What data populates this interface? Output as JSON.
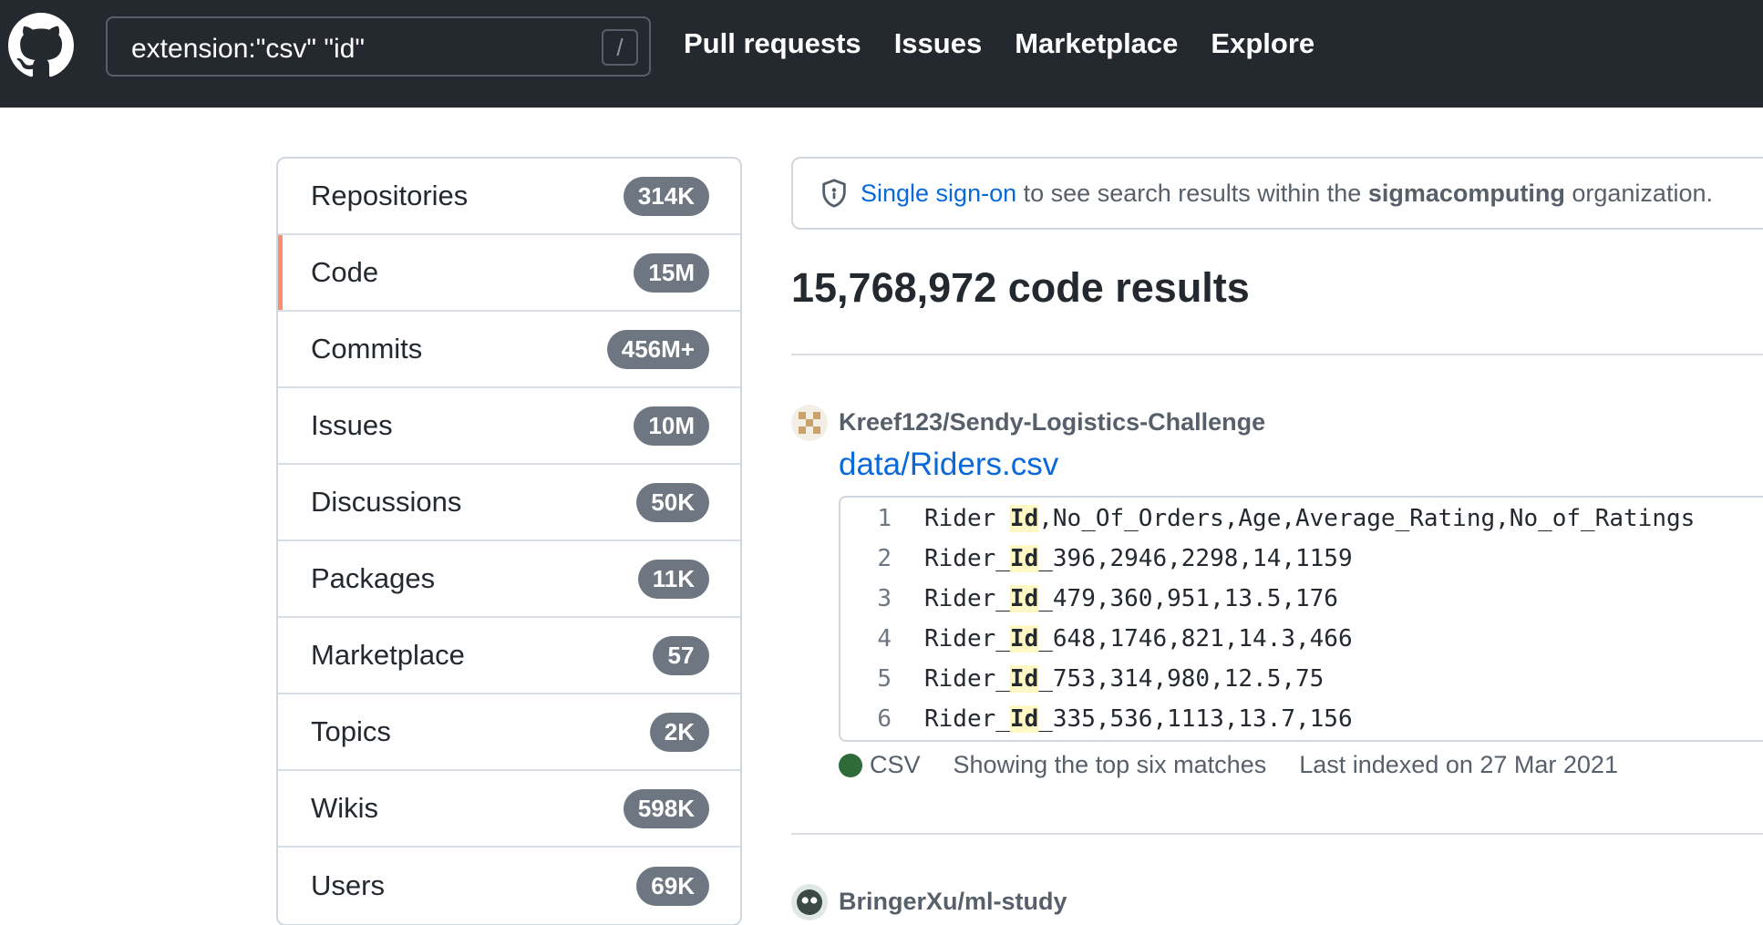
{
  "header": {
    "search": {
      "value": "extension:\"csv\" \"id\"",
      "shortcut": "/"
    },
    "nav": [
      "Pull requests",
      "Issues",
      "Marketplace",
      "Explore"
    ]
  },
  "sidebar": {
    "items": [
      {
        "label": "Repositories",
        "count": "314K",
        "active": false
      },
      {
        "label": "Code",
        "count": "15M",
        "active": true
      },
      {
        "label": "Commits",
        "count": "456M+",
        "active": false
      },
      {
        "label": "Issues",
        "count": "10M",
        "active": false
      },
      {
        "label": "Discussions",
        "count": "50K",
        "active": false
      },
      {
        "label": "Packages",
        "count": "11K",
        "active": false
      },
      {
        "label": "Marketplace",
        "count": "57",
        "active": false
      },
      {
        "label": "Topics",
        "count": "2K",
        "active": false
      },
      {
        "label": "Wikis",
        "count": "598K",
        "active": false
      },
      {
        "label": "Users",
        "count": "69K",
        "active": false
      }
    ]
  },
  "sso": {
    "link": "Single sign-on",
    "text1": "to see search results within the",
    "org": "sigmacomputing",
    "text2": "organization."
  },
  "results": {
    "title": "15,768,972 code results",
    "items": [
      {
        "repo": "Kreef123/Sendy-Logistics-Challenge",
        "file": "data/Riders.csv",
        "lines": [
          {
            "n": "1",
            "pre": "Rider ",
            "match": "Id",
            "post": ",No_Of_Orders,Age,Average_Rating,No_of_Ratings"
          },
          {
            "n": "2",
            "pre": "Rider_",
            "match": "Id",
            "post": "_396,2946,2298,14,1159"
          },
          {
            "n": "3",
            "pre": "Rider_",
            "match": "Id",
            "post": "_479,360,951,13.5,176"
          },
          {
            "n": "4",
            "pre": "Rider_",
            "match": "Id",
            "post": "_648,1746,821,14.3,466"
          },
          {
            "n": "5",
            "pre": "Rider_",
            "match": "Id",
            "post": "_753,314,980,12.5,75"
          },
          {
            "n": "6",
            "pre": "Rider_",
            "match": "Id",
            "post": "_335,536,1113,13.7,156"
          }
        ],
        "language": "CSV",
        "language_color": "#2f6b3a",
        "matches_note": "Showing the top six matches",
        "indexed": "Last indexed on 27 Mar 2021"
      },
      {
        "repo": "BringerXu/ml-study"
      }
    ]
  }
}
